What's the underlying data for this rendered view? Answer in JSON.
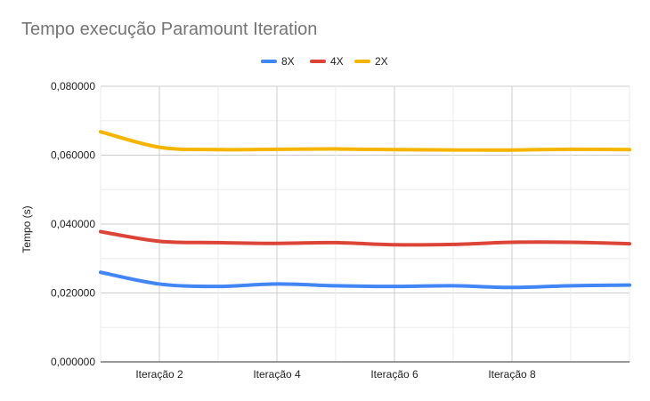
{
  "chart_data": {
    "type": "line",
    "title": "Tempo execução Paramount Iteration",
    "xlabel": "",
    "ylabel": "Tempo (s)",
    "ylim": [
      0,
      0.08
    ],
    "y_ticks": [
      "0,000000",
      "0,020000",
      "0,040000",
      "0,060000",
      "0,080000"
    ],
    "x": [
      1,
      2,
      3,
      4,
      5,
      6,
      7,
      8,
      9,
      10
    ],
    "x_tick_labels": [
      "Iteração 2",
      "Iteração 4",
      "Iteração 6",
      "Iteração 8"
    ],
    "x_tick_positions": [
      2,
      4,
      6,
      8
    ],
    "grid": true,
    "legend_position": "top",
    "series": [
      {
        "name": "8X",
        "color": "#4285f4",
        "values": [
          0.026,
          0.0226,
          0.0219,
          0.0226,
          0.0221,
          0.0219,
          0.0221,
          0.0216,
          0.0221,
          0.0223
        ]
      },
      {
        "name": "4X",
        "color": "#db4437",
        "values": [
          0.0378,
          0.035,
          0.0346,
          0.0344,
          0.0346,
          0.034,
          0.0341,
          0.0347,
          0.0347,
          0.0343
        ]
      },
      {
        "name": "2X",
        "color": "#f4b400",
        "values": [
          0.0668,
          0.0623,
          0.0616,
          0.0617,
          0.0618,
          0.0616,
          0.0615,
          0.0615,
          0.0617,
          0.0616
        ]
      }
    ]
  }
}
